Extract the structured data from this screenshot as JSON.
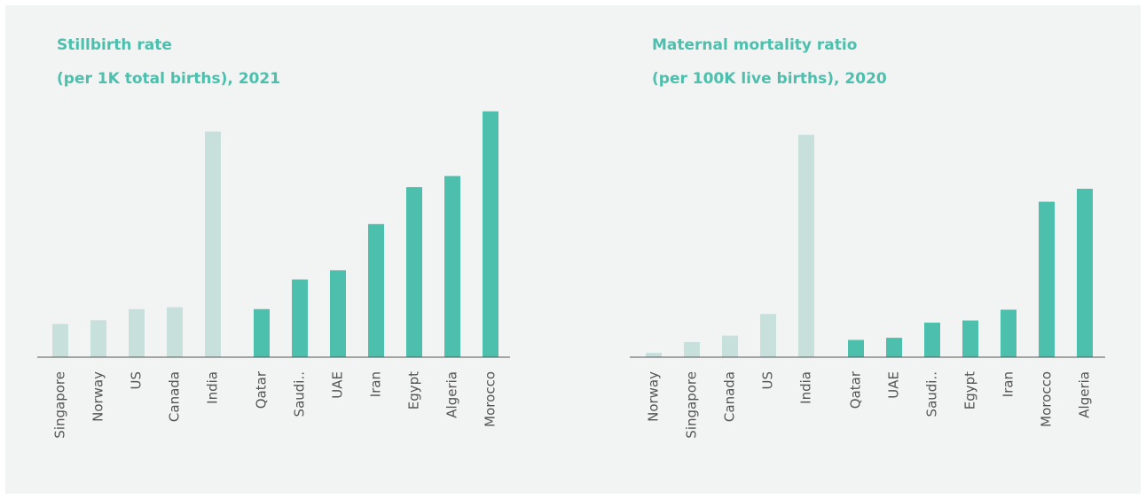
{
  "chart_data": [
    {
      "type": "bar",
      "title": [
        "Stillbirth rate",
        "(per 1K total births), 2021"
      ],
      "categories": [
        "Singapore",
        "Norway",
        "US",
        "Canada",
        "India",
        "Qatar",
        "Saudi..",
        "UAE",
        "Iran",
        "Egypt",
        "Algeria",
        "Morocco"
      ],
      "values": [
        1.8,
        2.0,
        2.6,
        2.7,
        12.2,
        2.6,
        4.2,
        4.7,
        7.2,
        9.2,
        9.8,
        13.3
      ],
      "colors": [
        "#c7e0dc",
        "#c7e0dc",
        "#c7e0dc",
        "#c7e0dc",
        "#c7e0dc",
        "#4dbfad",
        "#4dbfad",
        "#4dbfad",
        "#4dbfad",
        "#4dbfad",
        "#4dbfad",
        "#4dbfad"
      ],
      "ylim": [
        0,
        14
      ]
    },
    {
      "type": "bar",
      "title": [
        "Maternal mortality ratio",
        "(per 100K live births), 2020"
      ],
      "categories": [
        "Norway",
        "Singapore",
        "Canada",
        "US",
        "India",
        "Qatar",
        "UAE",
        "Saudi..",
        "Egypt",
        "Iran",
        "Morocco",
        "Algeria"
      ],
      "values": [
        2,
        7,
        10,
        20,
        103,
        8,
        9,
        16,
        17,
        22,
        72,
        78
      ],
      "colors": [
        "#c7e0dc",
        "#c7e0dc",
        "#c7e0dc",
        "#c7e0dc",
        "#c7e0dc",
        "#4dbfad",
        "#4dbfad",
        "#4dbfad",
        "#4dbfad",
        "#4dbfad",
        "#4dbfad",
        "#4dbfad"
      ],
      "ylim": [
        0,
        110
      ]
    }
  ]
}
